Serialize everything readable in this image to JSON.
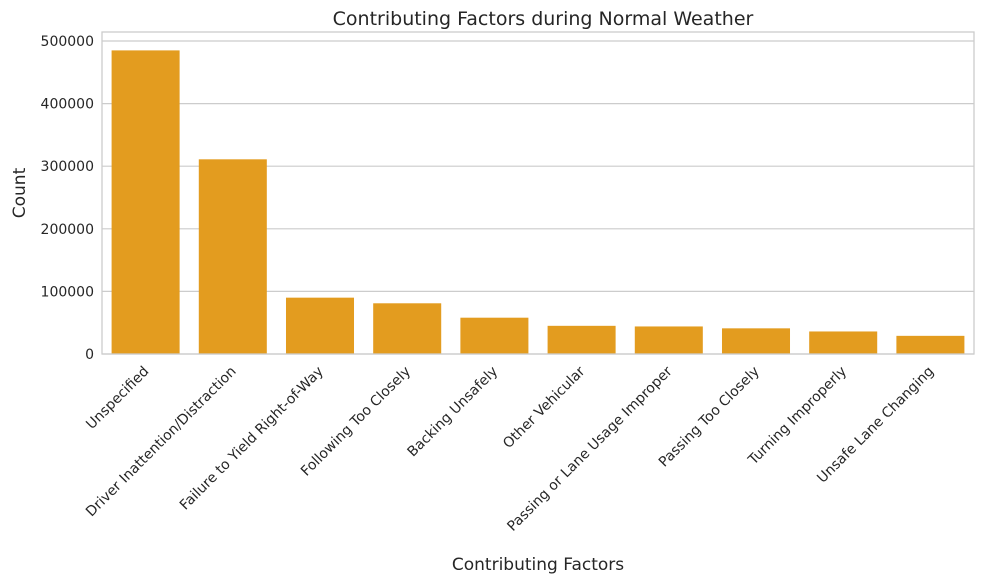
{
  "chart_data": {
    "type": "bar",
    "title": "Contributing Factors during Normal Weather",
    "xlabel": "Contributing Factors",
    "ylabel": "Count",
    "categories": [
      "Unspecified",
      "Driver Inattention/Distraction",
      "Failure to Yield Right-of-Way",
      "Following Too Closely",
      "Backing Unsafely",
      "Other Vehicular",
      "Passing or Lane Usage Improper",
      "Passing Too Closely",
      "Turning Improperly",
      "Unsafe Lane Changing"
    ],
    "values": [
      485000,
      311000,
      90000,
      81000,
      58000,
      45000,
      44000,
      41000,
      36000,
      29000
    ],
    "yticks": [
      0,
      100000,
      200000,
      300000,
      400000,
      500000
    ],
    "ylim": [
      0,
      500000
    ],
    "grid": "y",
    "bar_color": "#e39c1f",
    "grid_color": "#cccccc"
  }
}
